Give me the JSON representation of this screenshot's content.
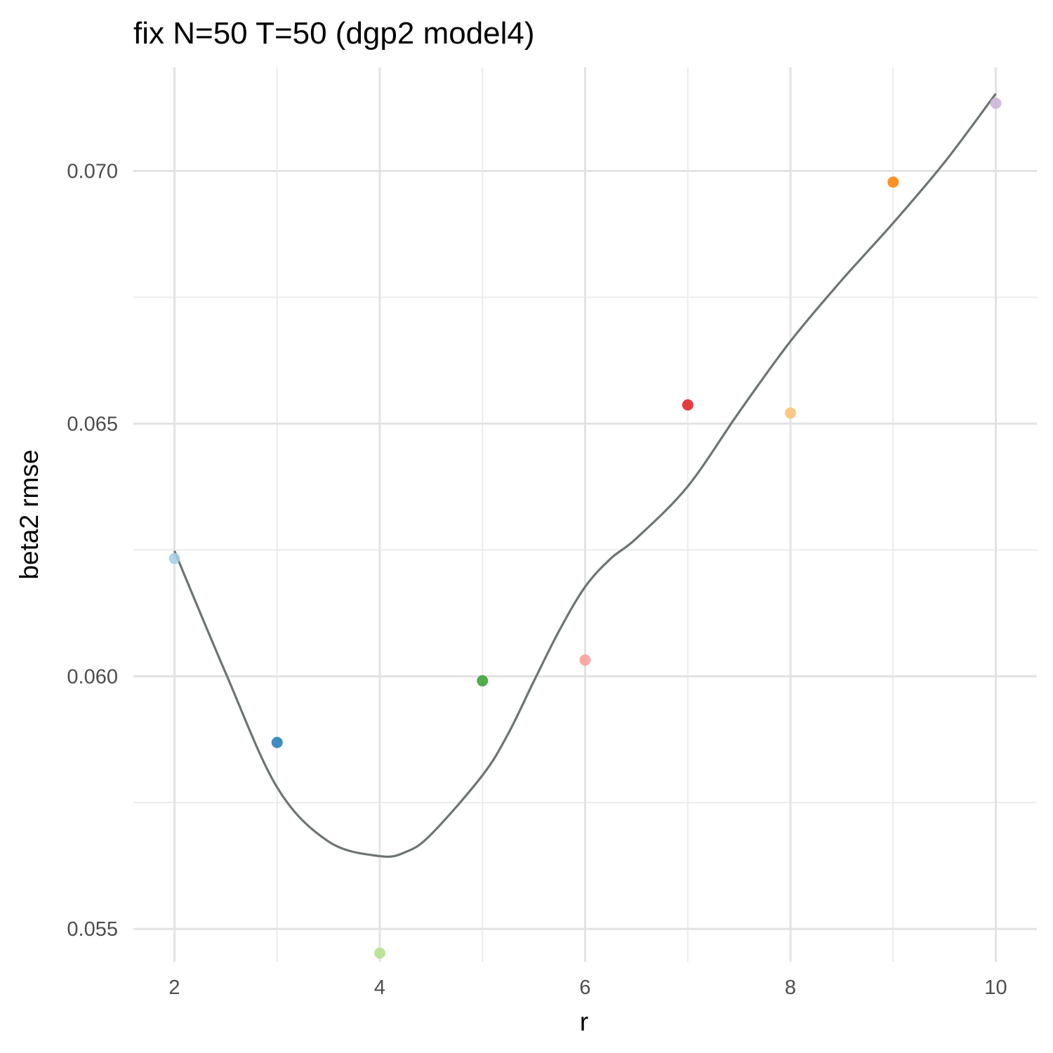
{
  "chart_data": {
    "type": "scatter",
    "title": "fix N=50 T=50 (dgp2 model4)",
    "xlabel": "r",
    "ylabel": "beta2 rmse",
    "xlim": [
      1.6,
      10.4
    ],
    "ylim": [
      0.05435,
      0.07205
    ],
    "x_ticks": [
      2,
      4,
      6,
      8,
      10
    ],
    "x_tick_labels": [
      "2",
      "4",
      "6",
      "8",
      "10"
    ],
    "x_minor_ticks": [
      3,
      5,
      7,
      9
    ],
    "y_ticks": [
      0.055,
      0.06,
      0.065,
      0.07
    ],
    "y_tick_labels": [
      "0.055",
      "0.060",
      "0.065",
      "0.070"
    ],
    "y_minor_ticks": [
      0.0575,
      0.0625,
      0.0675
    ],
    "grid": true,
    "legend": "none",
    "series": [
      {
        "type": "points",
        "points": [
          {
            "x": 2,
            "y": 0.06233,
            "color": "#a6cee3"
          },
          {
            "x": 3,
            "y": 0.05869,
            "color": "#1f78b4"
          },
          {
            "x": 4,
            "y": 0.05452,
            "color": "#b2df8a"
          },
          {
            "x": 5,
            "y": 0.05991,
            "color": "#33a02c"
          },
          {
            "x": 6,
            "y": 0.06032,
            "color": "#fb9a99"
          },
          {
            "x": 7,
            "y": 0.06537,
            "color": "#e31a1c"
          },
          {
            "x": 8,
            "y": 0.06521,
            "color": "#fdbf6f"
          },
          {
            "x": 9,
            "y": 0.06978,
            "color": "#ff7f00"
          },
          {
            "x": 10,
            "y": 0.07134,
            "color": "#cab2d6"
          }
        ]
      },
      {
        "type": "smooth",
        "color": "#6e7474",
        "x": [
          2.0,
          2.5,
          3.0,
          3.5,
          4.0,
          4.25,
          4.5,
          5.0,
          5.25,
          5.5,
          5.75,
          6.0,
          6.25,
          6.5,
          7.0,
          7.5,
          8.0,
          8.5,
          9.0,
          9.5,
          10.0
        ],
        "y": [
          0.06248,
          0.06006,
          0.0578,
          0.05673,
          0.05644,
          0.05652,
          0.05687,
          0.05804,
          0.05886,
          0.0599,
          0.06091,
          0.06177,
          0.06233,
          0.06273,
          0.06376,
          0.06523,
          0.06663,
          0.06784,
          0.06897,
          0.07017,
          0.07153
        ]
      }
    ]
  }
}
